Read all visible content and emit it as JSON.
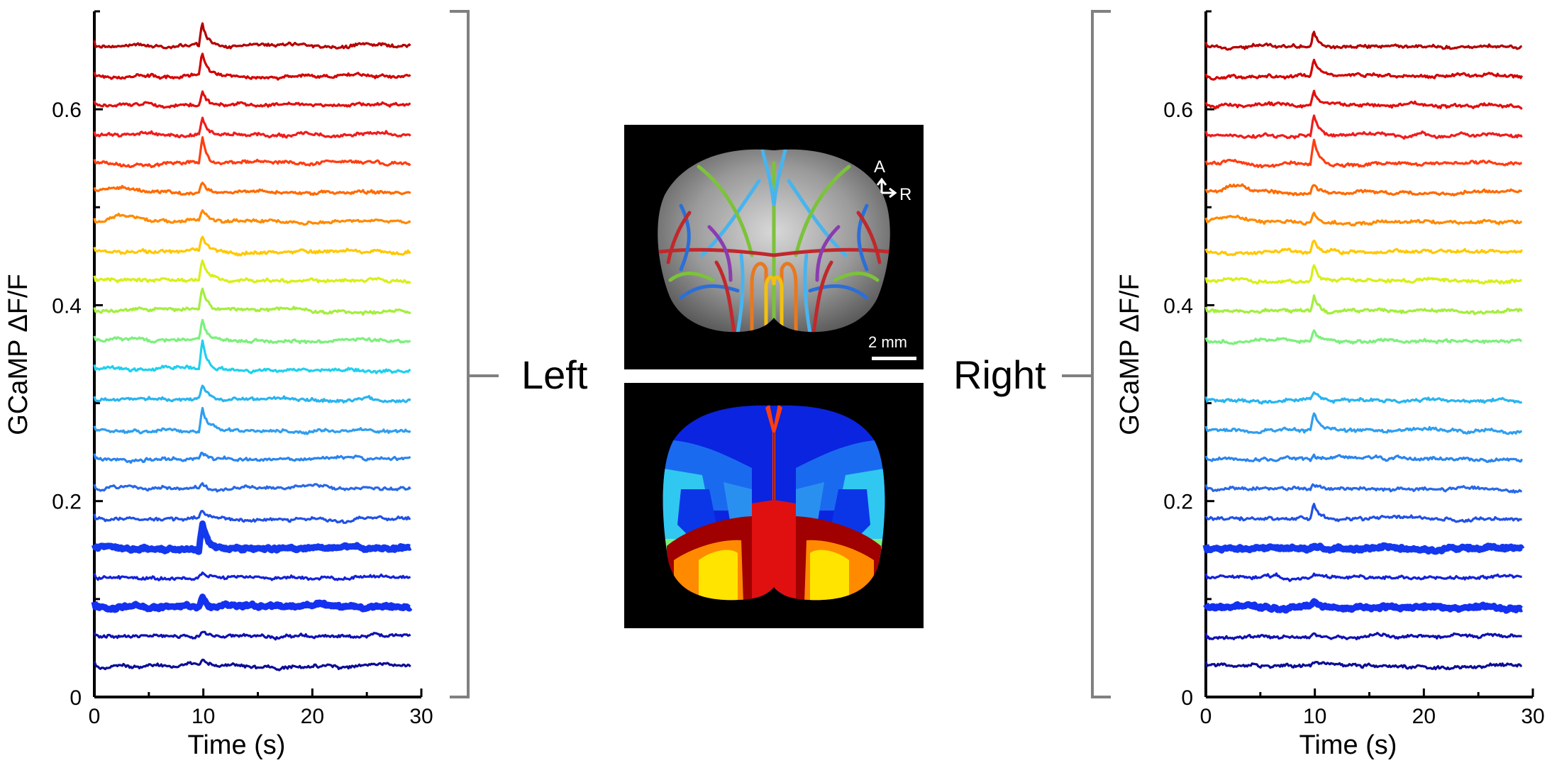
{
  "labels": {
    "left": "Left",
    "right": "Right",
    "scalebar": "2 mm",
    "orient_a": "A",
    "orient_r": "R"
  },
  "chart_data": [
    {
      "type": "line",
      "panel": "left",
      "xlabel": "Time (s)",
      "ylabel": "GCaMP ΔF/F",
      "xlim": [
        0,
        30
      ],
      "ylim": [
        0,
        0.7
      ],
      "xticks": [
        0,
        10,
        20,
        30
      ],
      "yticks": [
        0,
        0.2,
        0.4,
        0.6
      ],
      "ytick_labels": [
        "0",
        "0.2",
        "0.4",
        "0.6"
      ],
      "x": [
        0,
        29
      ],
      "series": [
        {
          "color": "#b40000",
          "offset": 0.665,
          "peak": 0.024,
          "bold": false
        },
        {
          "color": "#d40000",
          "offset": 0.634,
          "peak": 0.024,
          "bold": false
        },
        {
          "color": "#e30e0e",
          "offset": 0.604,
          "peak": 0.014,
          "bold": false
        },
        {
          "color": "#f01c1c",
          "offset": 0.574,
          "peak": 0.02,
          "bold": false
        },
        {
          "color": "#ff3d10",
          "offset": 0.545,
          "peak": 0.028,
          "bold": false
        },
        {
          "color": "#ff6a00",
          "offset": 0.515,
          "peak": 0.012,
          "bold": false
        },
        {
          "color": "#ff8a00",
          "offset": 0.485,
          "peak": 0.012,
          "bold": false
        },
        {
          "color": "#ffc800",
          "offset": 0.455,
          "peak": 0.016,
          "bold": false
        },
        {
          "color": "#d8ef18",
          "offset": 0.425,
          "peak": 0.02,
          "bold": false
        },
        {
          "color": "#a4ee3e",
          "offset": 0.394,
          "peak": 0.022,
          "bold": false
        },
        {
          "color": "#7cf07c",
          "offset": 0.364,
          "peak": 0.022,
          "bold": false
        },
        {
          "color": "#1fd0ee",
          "offset": 0.334,
          "peak": 0.03,
          "bold": false
        },
        {
          "color": "#28b4f0",
          "offset": 0.303,
          "peak": 0.014,
          "bold": false
        },
        {
          "color": "#2e9ef0",
          "offset": 0.272,
          "peak": 0.024,
          "bold": false
        },
        {
          "color": "#2a84ee",
          "offset": 0.243,
          "peak": 0.006,
          "bold": false
        },
        {
          "color": "#2868e8",
          "offset": 0.213,
          "peak": 0.006,
          "bold": false
        },
        {
          "color": "#2050e6",
          "offset": 0.182,
          "peak": 0.008,
          "bold": false
        },
        {
          "color": "#1438ee",
          "offset": 0.152,
          "peak": 0.028,
          "bold": true
        },
        {
          "color": "#1222d8",
          "offset": 0.122,
          "peak": 0.006,
          "bold": false
        },
        {
          "color": "#1430f0",
          "offset": 0.092,
          "peak": 0.012,
          "bold": true
        },
        {
          "color": "#1010b0",
          "offset": 0.062,
          "peak": 0.006,
          "bold": false
        },
        {
          "color": "#0c0c96",
          "offset": 0.032,
          "peak": 0.006,
          "bold": false
        }
      ]
    },
    {
      "type": "line",
      "panel": "right",
      "xlabel": "Time (s)",
      "ylabel": "GCaMP ΔF/F",
      "xlim": [
        0,
        30
      ],
      "ylim": [
        0,
        0.7
      ],
      "xticks": [
        0,
        10,
        20,
        30
      ],
      "yticks": [
        0,
        0.2,
        0.4,
        0.6
      ],
      "ytick_labels": [
        "0",
        "0.2",
        "0.4",
        "0.6"
      ],
      "x": [
        0,
        29
      ],
      "series": [
        {
          "color": "#b40000",
          "offset": 0.665,
          "peak": 0.016,
          "bold": false
        },
        {
          "color": "#d40000",
          "offset": 0.634,
          "peak": 0.018,
          "bold": false
        },
        {
          "color": "#e30e0e",
          "offset": 0.604,
          "peak": 0.014,
          "bold": false
        },
        {
          "color": "#f01c1c",
          "offset": 0.574,
          "peak": 0.022,
          "bold": false
        },
        {
          "color": "#ff3d10",
          "offset": 0.545,
          "peak": 0.026,
          "bold": false
        },
        {
          "color": "#ff6a00",
          "offset": 0.515,
          "peak": 0.01,
          "bold": false
        },
        {
          "color": "#ff8a00",
          "offset": 0.485,
          "peak": 0.012,
          "bold": false
        },
        {
          "color": "#ffc800",
          "offset": 0.455,
          "peak": 0.014,
          "bold": false
        },
        {
          "color": "#d8ef18",
          "offset": 0.425,
          "peak": 0.016,
          "bold": false
        },
        {
          "color": "#a4ee3e",
          "offset": 0.394,
          "peak": 0.016,
          "bold": false
        },
        {
          "color": "#7cf07c",
          "offset": 0.364,
          "peak": 0.012,
          "bold": false
        },
        {
          "color": "#28b4f0",
          "offset": 0.303,
          "peak": 0.006,
          "bold": false
        },
        {
          "color": "#2e9ef0",
          "offset": 0.272,
          "peak": 0.018,
          "bold": false
        },
        {
          "color": "#2a84ee",
          "offset": 0.243,
          "peak": 0.004,
          "bold": false
        },
        {
          "color": "#2868e8",
          "offset": 0.213,
          "peak": 0.004,
          "bold": false
        },
        {
          "color": "#2050e6",
          "offset": 0.182,
          "peak": 0.016,
          "bold": false
        },
        {
          "color": "#1438ee",
          "offset": 0.152,
          "peak": 0.005,
          "bold": true
        },
        {
          "color": "#1222d8",
          "offset": 0.122,
          "peak": 0.004,
          "bold": false
        },
        {
          "color": "#1430f0",
          "offset": 0.092,
          "peak": 0.006,
          "bold": true
        },
        {
          "color": "#1010b0",
          "offset": 0.062,
          "peak": 0.004,
          "bold": false
        },
        {
          "color": "#0c0c96",
          "offset": 0.032,
          "peak": 0.004,
          "bold": false
        }
      ]
    }
  ],
  "colors": {
    "axis": "#000000",
    "bracket": "#808080",
    "image_bg": "#000000"
  }
}
